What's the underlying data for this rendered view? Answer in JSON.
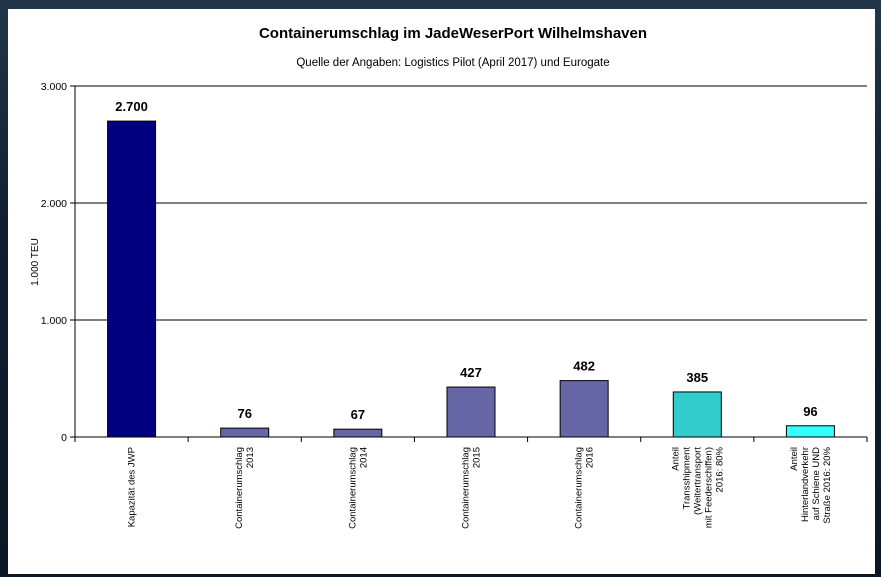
{
  "chart_data": {
    "type": "bar",
    "title": "Containerumschlag im JadeWeserPort Wilhelmshaven",
    "subtitle": "Quelle der Angaben: Logistics Pilot (April 2017) und Eurogate",
    "ylabel": "1.000 TEU",
    "xlabel": "",
    "ylim": [
      0,
      3000
    ],
    "yticks": [
      0,
      1000,
      2000,
      3000
    ],
    "ytick_labels": [
      "0",
      "1.000",
      "2.000",
      "3.000"
    ],
    "grid": true,
    "legend": "none",
    "categories": [
      [
        "Kapazität des JWP"
      ],
      [
        "Containerumschlag",
        "2013"
      ],
      [
        "Containerumschlag",
        "2014"
      ],
      [
        "Containerumschlag",
        "2015"
      ],
      [
        "Containerumschlag",
        "2016"
      ],
      [
        "Anteil",
        "Transshipment",
        "(Weitertransport",
        "mit Feederschiffen)",
        "2016: 80%"
      ],
      [
        "Anteil",
        "Hinterlandverkehr",
        "auf Schiene UND",
        "Straße 2016: 20%"
      ]
    ],
    "values": [
      2700,
      76,
      67,
      427,
      482,
      385,
      96
    ],
    "value_labels": [
      "2.700",
      "76",
      "67",
      "427",
      "482",
      "385",
      "96"
    ],
    "bar_colors": [
      "#000080",
      "#6666a6",
      "#6666a6",
      "#6666a6",
      "#6666a6",
      "#33cccc",
      "#33ffff"
    ]
  }
}
